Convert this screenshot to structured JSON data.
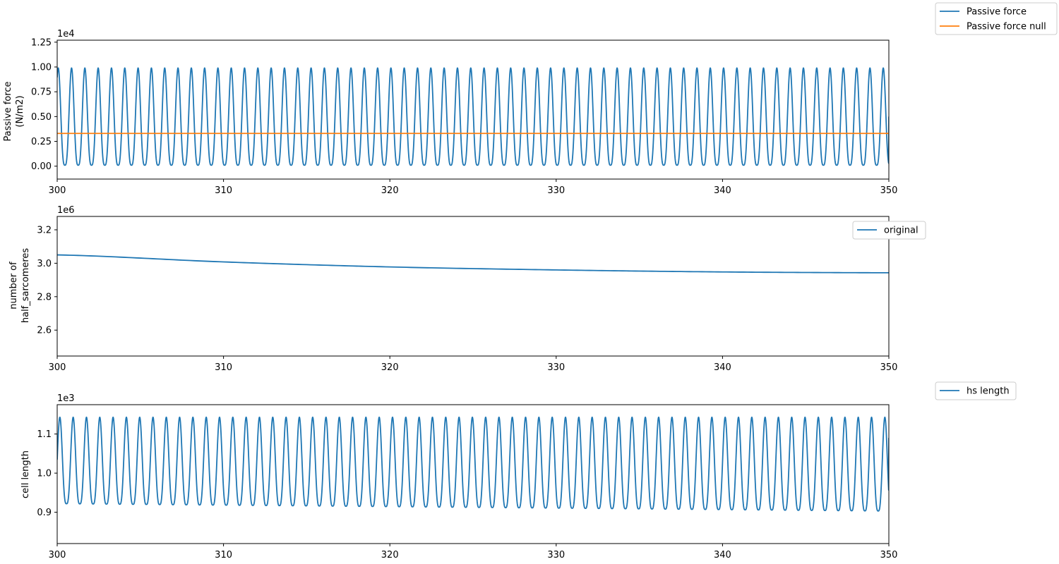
{
  "chart_data": [
    {
      "type": "line",
      "ylabel": [
        "Passive force",
        "(N/m2)"
      ],
      "offset_text": "1e4",
      "xlim": [
        300,
        350
      ],
      "ylim": [
        -0.13,
        1.27
      ],
      "xticks": [
        300,
        310,
        320,
        330,
        340,
        350
      ],
      "xtick_labels": [
        "300",
        "310",
        "320",
        "330",
        "340",
        "350"
      ],
      "yticks": [
        0,
        0.25,
        0.5,
        0.75,
        1.0,
        1.25
      ],
      "ytick_labels": [
        "0.00",
        "0.25",
        "0.50",
        "0.75",
        "1.00",
        "1.25"
      ],
      "grid": false,
      "legend_placement": "outside-top-right",
      "series": [
        {
          "name": "Passive force",
          "color": "#1f77b4",
          "kind": "oscillation",
          "period": 0.8,
          "min": 0.01,
          "max": 0.99,
          "start_phase": 0.42,
          "end_value": 0.5
        },
        {
          "name": "Passive force null",
          "color": "#ff7f0e",
          "kind": "constant",
          "value": 0.33
        }
      ]
    },
    {
      "type": "line",
      "ylabel": [
        "number of",
        "half_sarcomeres"
      ],
      "offset_text": "1e6",
      "xlim": [
        300,
        350
      ],
      "ylim": [
        2.445,
        3.28
      ],
      "xticks": [
        300,
        310,
        320,
        330,
        340,
        350
      ],
      "xtick_labels": [
        "300",
        "310",
        "320",
        "330",
        "340",
        "350"
      ],
      "yticks": [
        2.6,
        2.8,
        3.0,
        3.2
      ],
      "ytick_labels": [
        "2.6",
        "2.8",
        "3.0",
        "3.2"
      ],
      "grid": false,
      "legend_placement": "right",
      "series": [
        {
          "name": "original",
          "color": "#1f77b4",
          "kind": "decay",
          "x": [
            300,
            310,
            320,
            330,
            340,
            350
          ],
          "y": [
            3.05,
            3.008,
            2.978,
            2.96,
            2.948,
            2.943
          ]
        }
      ]
    },
    {
      "type": "line",
      "ylabel": [
        "cell length"
      ],
      "offset_text": "1e3",
      "xlim": [
        300,
        350
      ],
      "ylim": [
        0.82,
        1.175
      ],
      "xticks": [
        300,
        310,
        320,
        330,
        340,
        350
      ],
      "xtick_labels": [
        "300",
        "310",
        "320",
        "330",
        "340",
        "350"
      ],
      "yticks": [
        0.9,
        1.0,
        1.1
      ],
      "ytick_labels": [
        "0.9",
        "1.0",
        "1.1"
      ],
      "grid": false,
      "legend_placement": "outside-top-right",
      "series": [
        {
          "name": "hs length",
          "color": "#1f77b4",
          "kind": "oscillation",
          "period": 0.8,
          "min_start": 0.922,
          "min_end": 0.903,
          "max": 1.143,
          "start_phase": 0.3,
          "end_value": 1.09
        }
      ]
    }
  ]
}
